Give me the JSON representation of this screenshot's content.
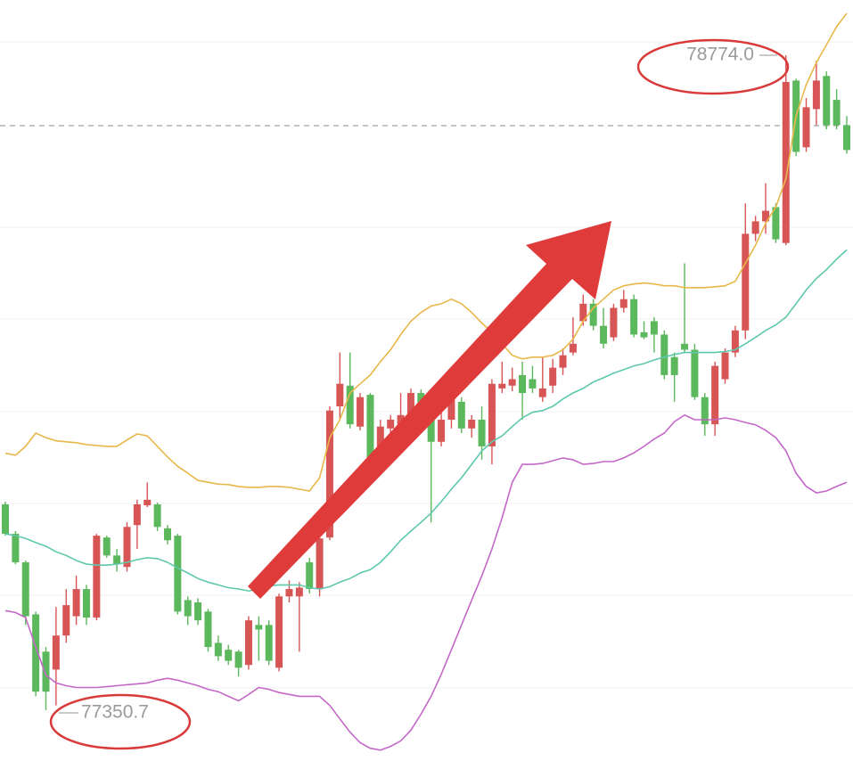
{
  "chart_data": {
    "type": "candlestick",
    "up_color": "#d75555",
    "down_color": "#5cb85c",
    "open": [
      77798,
      77734,
      77672,
      77559,
      77478,
      77439,
      77513,
      77555,
      77614,
      77552,
      77726,
      77687,
      77662,
      77753,
      77796,
      77798,
      77746,
      77730,
      77590,
      77585,
      77565,
      77497,
      77482,
      77478,
      77449,
      77536,
      77536,
      77443,
      77598,
      77598,
      77672,
      77614,
      77726,
      78011,
      78056,
      77967,
      78036,
      77914,
      77963,
      77972,
      77982,
      78040,
      77982,
      77934,
      77982,
      78021,
      77963,
      77982,
      77924,
      78050,
      78056,
      78079,
      78070,
      78031,
      78056,
      78095,
      78128,
      78196,
      78234,
      78186,
      78161,
      78225,
      78244,
      78172,
      78196,
      78167,
      78118,
      78147,
      78134,
      78031,
      77972,
      78070,
      78128,
      78176,
      78386,
      78413,
      78444,
      78366,
      78719,
      78574,
      78657,
      78729,
      78677,
      78622
    ],
    "high": [
      77804,
      77740,
      77676,
      77565,
      77488,
      77575,
      77614,
      77643,
      77623,
      77734,
      77730,
      77701,
      77759,
      77808,
      77846,
      77802,
      77753,
      77734,
      77598,
      77594,
      77571,
      77513,
      77493,
      77482,
      77555,
      77555,
      77546,
      77604,
      77633,
      77629,
      77682,
      77730,
      78011,
      78128,
      78128,
      78040,
      78040,
      77982,
      77992,
      78040,
      78050,
      78048,
      77992,
      78002,
      78040,
      78031,
      77992,
      78011,
      78070,
      78108,
      78095,
      78108,
      78099,
      78118,
      78114,
      78137,
      78205,
      78254,
      78244,
      78225,
      78234,
      78264,
      78254,
      78196,
      78205,
      78176,
      78128,
      78322,
      78147,
      78040,
      78108,
      78137,
      78186,
      78452,
      78425,
      78496,
      78452,
      78774.0,
      78723,
      78681,
      78762,
      78739,
      78700,
      78642
    ],
    "low": [
      77730,
      77668,
      77536,
      77381,
      77350.7,
      77361,
      77497,
      77536,
      77536,
      77546,
      77682,
      77652,
      77652,
      77701,
      77792,
      77740,
      77711,
      77559,
      77536,
      77536,
      77478,
      77458,
      77449,
      77424,
      77439,
      77458,
      77449,
      77435,
      77585,
      77478,
      77604,
      77598,
      77720,
      77982,
      77963,
      77959,
      77885,
      77905,
      77934,
      77963,
      77971,
      77963,
      77759,
      77924,
      77963,
      77953,
      77943,
      77895,
      77885,
      78040,
      78044,
      77982,
      78040,
      78021,
      78040,
      78079,
      78122,
      78186,
      78176,
      78137,
      78153,
      78215,
      78161,
      78157,
      78128,
      78070,
      78021,
      78128,
      78025,
      77947,
      77947,
      78060,
      78118,
      78157,
      78370,
      78386,
      78366,
      78361,
      78555,
      78564,
      78622,
      78613,
      78613,
      78560
    ],
    "close": [
      77734,
      77672,
      77555,
      77391,
      77391,
      77513,
      77579,
      77614,
      77552,
      77730,
      77687,
      77668,
      77749,
      77798,
      77808,
      77749,
      77720,
      77565,
      77555,
      77546,
      77488,
      77468,
      77458,
      77443,
      77546,
      77526,
      77458,
      77598,
      77614,
      77617,
      77614,
      77724,
      78002,
      78060,
      77972,
      78031,
      77895,
      77967,
      77982,
      77992,
      78040,
      77982,
      77934,
      77982,
      78031,
      77963,
      77982,
      77924,
      78060,
      78060,
      78070,
      78040,
      78050,
      78050,
      78095,
      78122,
      78147,
      78234,
      78186,
      78147,
      78225,
      78244,
      78167,
      78161,
      78167,
      78079,
      78079,
      78134,
      78031,
      77972,
      78099,
      78128,
      78176,
      78386,
      78413,
      78436,
      78374,
      78716,
      78564,
      78661,
      78719,
      78622,
      78622,
      78568
    ],
    "bands": [
      {
        "color": "#e8b84a",
        "values": [
          77909,
          77905,
          77924,
          77953,
          77943,
          77936,
          77934,
          77932,
          77928,
          77926,
          77924,
          77924,
          77938,
          77951,
          77947,
          77924,
          77901,
          77881,
          77866,
          77850,
          77846,
          77842,
          77841,
          77837,
          77835,
          77835,
          77837,
          77837,
          77835,
          77831,
          77827,
          77856,
          77943,
          77982,
          78040,
          78060,
          78079,
          78108,
          78134,
          78167,
          78196,
          78215,
          78229,
          78234,
          78244,
          78234,
          78215,
          78192,
          78172,
          78147,
          78122,
          78114,
          78118,
          78118,
          78122,
          78134,
          78157,
          78196,
          78225,
          78244,
          78264,
          78273,
          78277,
          78279,
          78277,
          78273,
          78273,
          78269,
          78269,
          78269,
          78271,
          78273,
          78283,
          78322,
          78361,
          78409,
          78444,
          78506,
          78642,
          78710,
          78758,
          78797,
          78836,
          78865
        ]
      },
      {
        "color": "#5ec8ad",
        "values": [
          77734,
          77730,
          77724,
          77715,
          77707,
          77695,
          77687,
          77676,
          77668,
          77666,
          77666,
          77668,
          77672,
          77678,
          77682,
          77680,
          77672,
          77660,
          77649,
          77637,
          77629,
          77623,
          77617,
          77614,
          77610,
          77614,
          77621,
          77623,
          77623,
          77623,
          77617,
          77614,
          77619,
          77629,
          77637,
          77649,
          77656,
          77672,
          77695,
          77720,
          77740,
          77759,
          77779,
          77804,
          77831,
          77856,
          77885,
          77914,
          77934,
          77947,
          77967,
          77986,
          77998,
          78002,
          78011,
          78027,
          78040,
          78050,
          78064,
          78073,
          78083,
          78091,
          78099,
          78104,
          78112,
          78118,
          78124,
          78128,
          78128,
          78128,
          78128,
          78130,
          78134,
          78147,
          78161,
          78176,
          78188,
          78205,
          78234,
          78264,
          78289,
          78308,
          78331,
          78351
        ]
      },
      {
        "color": "#c468c8",
        "values": [
          77567,
          77563,
          77552,
          77488,
          77427,
          77410,
          77404,
          77400,
          77400,
          77400,
          77402,
          77404,
          77406,
          77408,
          77410,
          77416,
          77420,
          77416,
          77410,
          77404,
          77396,
          77391,
          77381,
          77371,
          77385,
          77400,
          77396,
          77389,
          77385,
          77381,
          77381,
          77381,
          77361,
          77332,
          77303,
          77280,
          77268,
          77264,
          77272,
          77284,
          77307,
          77342,
          77381,
          77429,
          77482,
          77536,
          77590,
          77643,
          77701,
          77769,
          77846,
          77885,
          77885,
          77887,
          77893,
          77899,
          77895,
          77885,
          77887,
          77891,
          77891,
          77899,
          77910,
          77924,
          77940,
          77953,
          77978,
          77992,
          77982,
          77982,
          77982,
          77986,
          77982,
          77976,
          77971,
          77959,
          77943,
          77914,
          77866,
          77837,
          77823,
          77827,
          77837,
          77846
        ]
      }
    ],
    "price_line": 78621,
    "high_label": "78774.0",
    "low_label": "77350.7"
  }
}
